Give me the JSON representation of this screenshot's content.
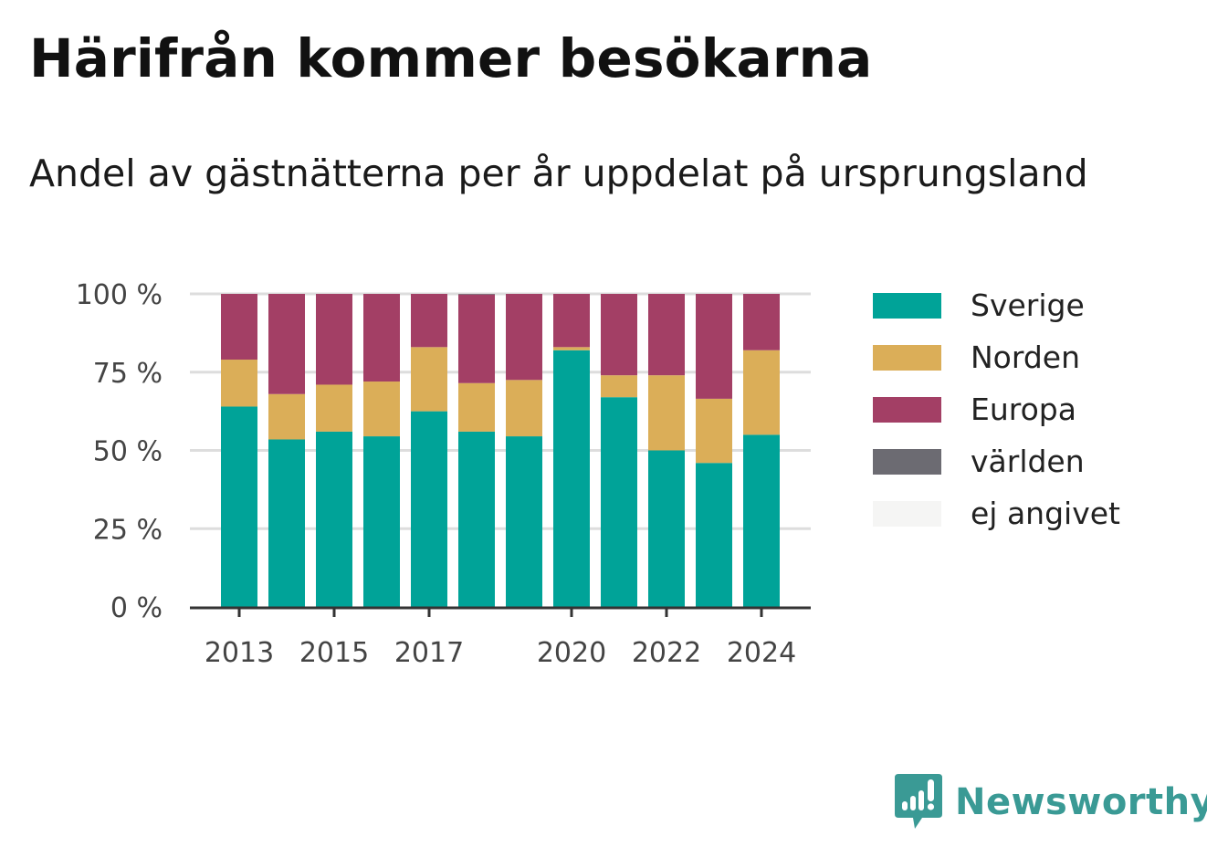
{
  "title": "Härifrån kommer besökarna",
  "subtitle": "Andel av gästnätterna per år uppdelat på ursprungsland",
  "brand": "Newsworthy",
  "colors": {
    "Sverige": "#00a398",
    "Norden": "#dbae58",
    "Europa": "#a33f65",
    "världen": "#6c6b72",
    "ej angivet": "#f5f5f4",
    "grid": "#dddddd",
    "axis": "#333333",
    "brand": "#3a9a95"
  },
  "legend": [
    {
      "label": "Sverige",
      "color": "#00a398"
    },
    {
      "label": "Norden",
      "color": "#dbae58"
    },
    {
      "label": "Europa",
      "color": "#a33f65"
    },
    {
      "label": "världen",
      "color": "#6c6b72"
    },
    {
      "label": "ej angivet",
      "color": "#f5f5f4"
    }
  ],
  "chart_data": {
    "type": "bar",
    "stacked": true,
    "title": "Härifrån kommer besökarna",
    "subtitle": "Andel av gästnätterna per år uppdelat på ursprungsland",
    "categories": [
      2013,
      2014,
      2015,
      2016,
      2017,
      2018,
      2019,
      2020,
      2021,
      2022,
      2023,
      2024
    ],
    "x_tick_labels": [
      "2013",
      "2015",
      "2017",
      "2020",
      "2022",
      "2024"
    ],
    "y_tick_labels": [
      "0 %",
      "25 %",
      "50 %",
      "75 %",
      "100 %"
    ],
    "y_ticks": [
      0,
      25,
      50,
      75,
      100
    ],
    "ylim": [
      0,
      100
    ],
    "grid": true,
    "legend_position": "right",
    "series": [
      {
        "name": "Sverige",
        "values": [
          64,
          53.5,
          56,
          54.5,
          62.5,
          56,
          54.5,
          82,
          67,
          50,
          46,
          55
        ]
      },
      {
        "name": "Norden",
        "values": [
          15,
          14.5,
          15,
          17.5,
          20.5,
          15.5,
          18,
          1,
          7,
          24,
          20.5,
          27
        ]
      },
      {
        "name": "Europa",
        "values": [
          21,
          32,
          29,
          28,
          17,
          28.3,
          27.5,
          17,
          26,
          26,
          33.5,
          18
        ]
      },
      {
        "name": "världen",
        "values": [
          0,
          0,
          0,
          0,
          0,
          0.2,
          0,
          0,
          0,
          0,
          0,
          0
        ]
      },
      {
        "name": "ej angivet",
        "values": [
          0,
          0,
          0,
          0,
          0,
          0,
          0,
          0,
          0,
          0,
          0,
          0
        ]
      }
    ]
  }
}
